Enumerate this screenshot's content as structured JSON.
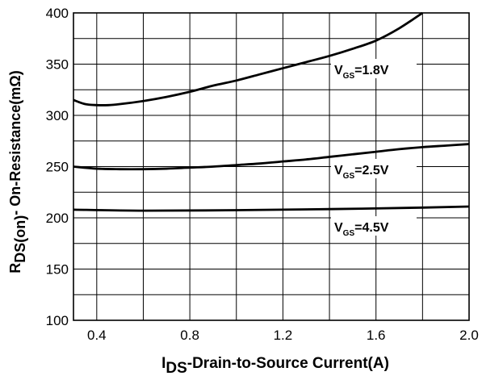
{
  "chart_data": {
    "type": "line",
    "title": "",
    "xlabel": {
      "main": "I",
      "sub": "DS",
      "rest": "-Drain-to-Source Current(A)"
    },
    "ylabel": {
      "main": "R",
      "sub": "DS(on)",
      "rest": "- On-Resistance(mΩ)"
    },
    "xlim": [
      0.3,
      2.0
    ],
    "ylim": [
      100,
      400
    ],
    "x_ticks": [
      0.4,
      0.8,
      1.2,
      1.6,
      2.0
    ],
    "x_tick_labels": [
      "0.4",
      "0.8",
      "1.2",
      "1.6",
      "2.0"
    ],
    "y_ticks": [
      100,
      150,
      200,
      250,
      300,
      350,
      400
    ],
    "y_tick_labels": [
      "100",
      "150",
      "200",
      "250",
      "300",
      "350",
      "400"
    ],
    "grid": true,
    "legend": "none",
    "series": [
      {
        "label": {
          "main": "V",
          "sub": "GS",
          "rest": "=1.8V"
        },
        "x": [
          0.3,
          0.35,
          0.4,
          0.45,
          0.5,
          0.6,
          0.7,
          0.8,
          0.9,
          1.0,
          1.1,
          1.2,
          1.3,
          1.4,
          1.5,
          1.6,
          1.7,
          1.8
        ],
        "y": [
          315,
          311,
          310,
          310,
          311,
          314,
          318,
          323,
          329,
          334,
          340,
          346,
          352,
          358,
          365,
          373,
          385,
          400
        ]
      },
      {
        "label": {
          "main": "V",
          "sub": "GS",
          "rest": "=2.5V"
        },
        "x": [
          0.3,
          0.4,
          0.5,
          0.6,
          0.7,
          0.8,
          0.9,
          1.0,
          1.1,
          1.2,
          1.3,
          1.4,
          1.5,
          1.6,
          1.7,
          1.8,
          1.9,
          2.0
        ],
        "y": [
          250,
          248,
          247.5,
          247.5,
          248,
          249,
          250,
          251.5,
          253,
          255,
          257,
          259.5,
          262,
          264.5,
          267,
          269,
          270.5,
          272
        ]
      },
      {
        "label": {
          "main": "V",
          "sub": "GS",
          "rest": "=4.5V"
        },
        "x": [
          0.3,
          0.6,
          1.0,
          1.4,
          1.8,
          2.0
        ],
        "y": [
          208,
          207,
          207.5,
          208.5,
          210,
          211
        ]
      }
    ]
  }
}
